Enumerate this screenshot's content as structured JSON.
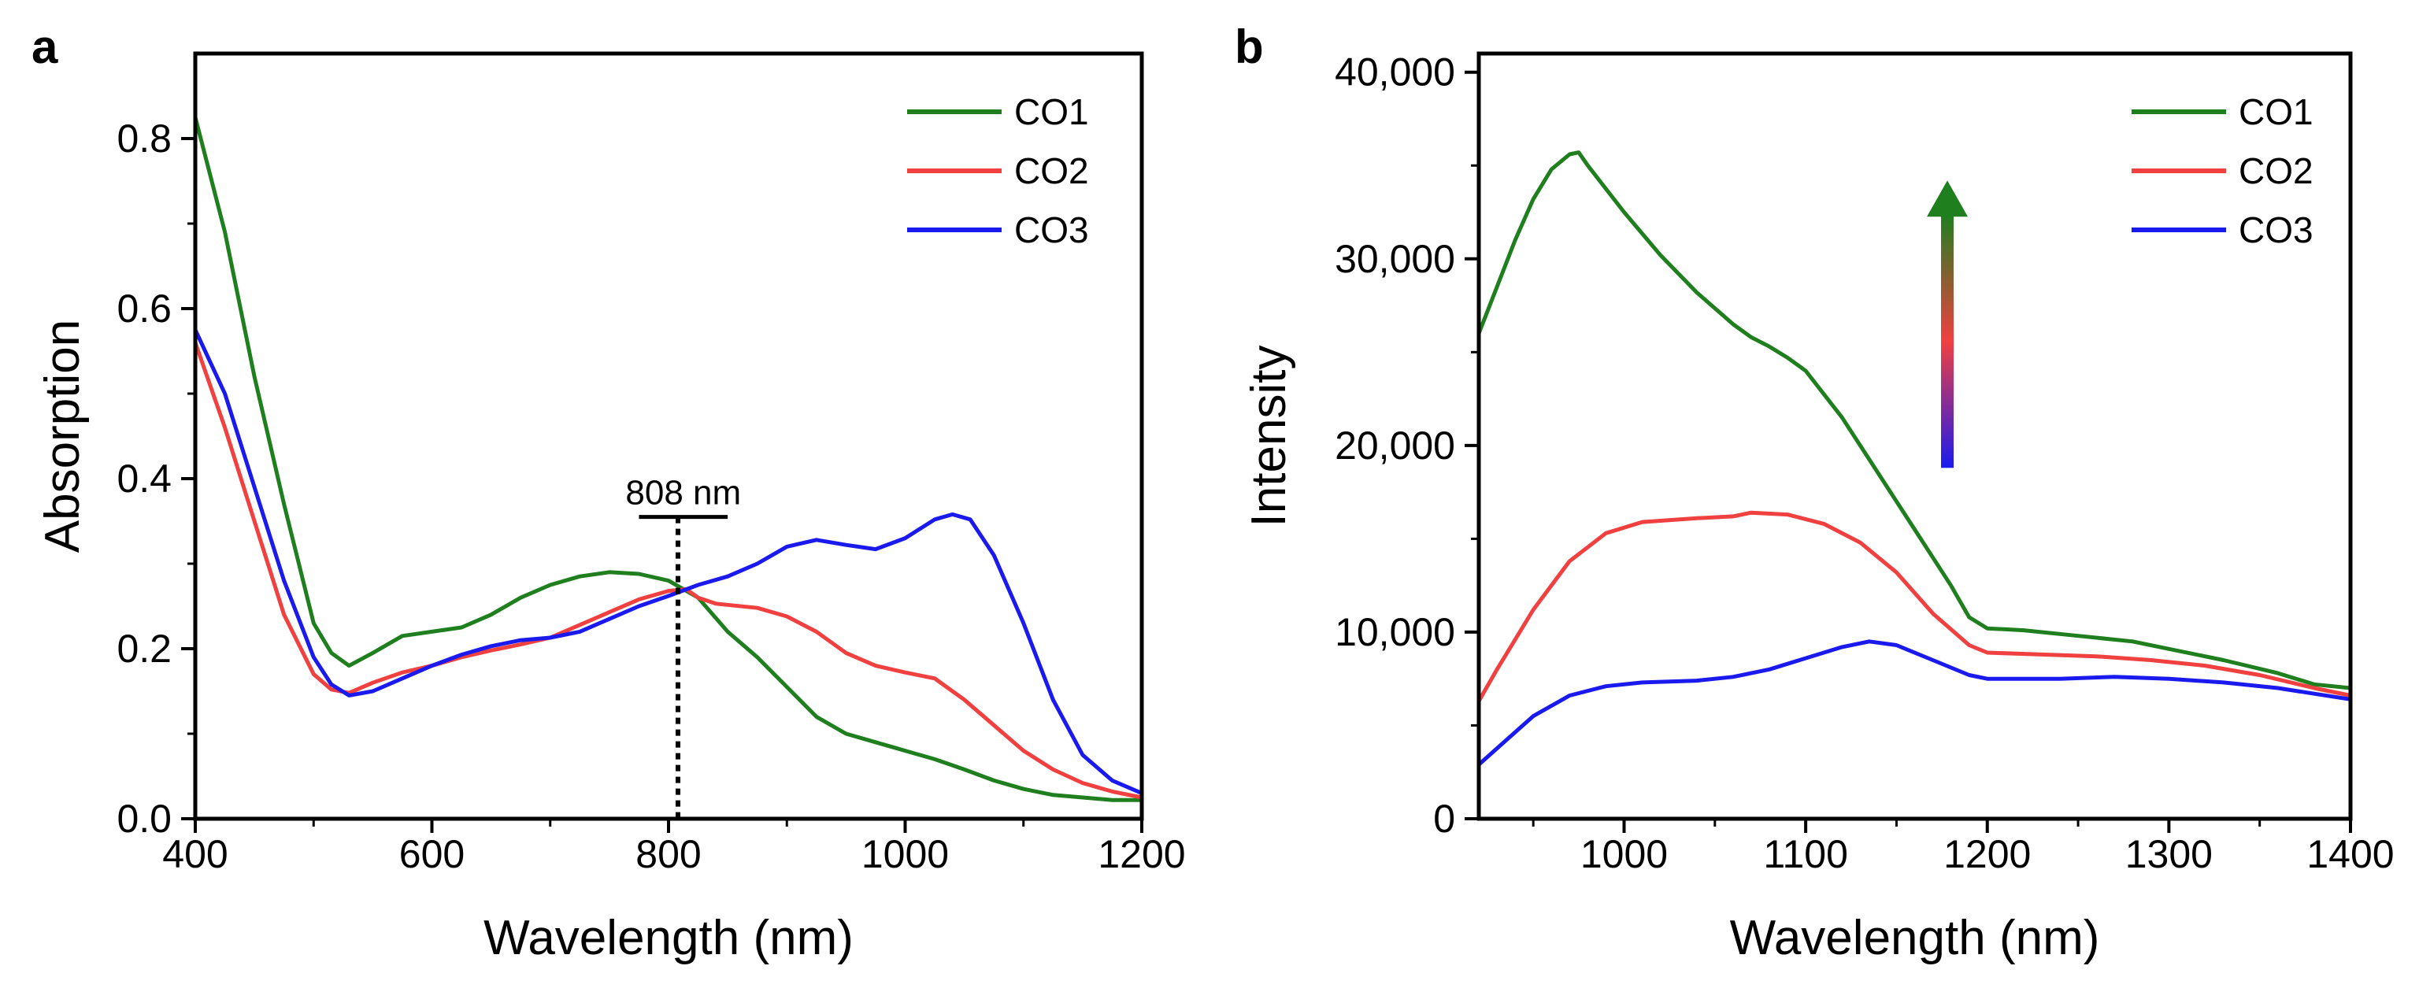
{
  "chart_data": [
    {
      "type": "line",
      "panel": "a",
      "xlabel": "Wavelength (nm)",
      "ylabel": "Absorption",
      "xlim": [
        400,
        1200
      ],
      "ylim": [
        0,
        0.9
      ],
      "xticks": [
        400,
        600,
        800,
        1000,
        1200
      ],
      "xtick_labels": [
        "400",
        "600",
        "800",
        "1000",
        "1200"
      ],
      "yticks": [
        0,
        0.2,
        0.4,
        0.6,
        0.8
      ],
      "ytick_labels": [
        "0.0",
        "0.2",
        "0.4",
        "0.6",
        "0.8"
      ],
      "legend": "top-right",
      "annotation": {
        "label": "808 nm",
        "x": 808,
        "bracket_from": 775,
        "bracket_to": 850,
        "y": 0.355
      },
      "series": [
        {
          "name": "CO1",
          "color": "#1f7f1f",
          "points": [
            [
              400,
              0.825
            ],
            [
              425,
              0.69
            ],
            [
              450,
              0.52
            ],
            [
              475,
              0.37
            ],
            [
              500,
              0.23
            ],
            [
              515,
              0.195
            ],
            [
              530,
              0.18
            ],
            [
              550,
              0.195
            ],
            [
              575,
              0.215
            ],
            [
              600,
              0.22
            ],
            [
              625,
              0.225
            ],
            [
              650,
              0.24
            ],
            [
              675,
              0.26
            ],
            [
              700,
              0.275
            ],
            [
              725,
              0.285
            ],
            [
              750,
              0.29
            ],
            [
              775,
              0.288
            ],
            [
              800,
              0.28
            ],
            [
              825,
              0.26
            ],
            [
              850,
              0.22
            ],
            [
              875,
              0.19
            ],
            [
              900,
              0.155
            ],
            [
              925,
              0.12
            ],
            [
              950,
              0.1
            ],
            [
              975,
              0.09
            ],
            [
              1000,
              0.08
            ],
            [
              1025,
              0.07
            ],
            [
              1050,
              0.058
            ],
            [
              1075,
              0.045
            ],
            [
              1100,
              0.035
            ],
            [
              1125,
              0.028
            ],
            [
              1150,
              0.025
            ],
            [
              1175,
              0.022
            ],
            [
              1200,
              0.022
            ]
          ]
        },
        {
          "name": "CO2",
          "color": "#f04040",
          "points": [
            [
              400,
              0.56
            ],
            [
              425,
              0.46
            ],
            [
              450,
              0.35
            ],
            [
              475,
              0.24
            ],
            [
              500,
              0.17
            ],
            [
              515,
              0.152
            ],
            [
              530,
              0.148
            ],
            [
              550,
              0.16
            ],
            [
              575,
              0.172
            ],
            [
              600,
              0.18
            ],
            [
              625,
              0.19
            ],
            [
              650,
              0.198
            ],
            [
              675,
              0.205
            ],
            [
              700,
              0.213
            ],
            [
              725,
              0.228
            ],
            [
              750,
              0.243
            ],
            [
              775,
              0.258
            ],
            [
              800,
              0.268
            ],
            [
              815,
              0.27
            ],
            [
              825,
              0.26
            ],
            [
              840,
              0.253
            ],
            [
              875,
              0.248
            ],
            [
              900,
              0.238
            ],
            [
              925,
              0.22
            ],
            [
              950,
              0.195
            ],
            [
              975,
              0.18
            ],
            [
              1000,
              0.172
            ],
            [
              1025,
              0.165
            ],
            [
              1050,
              0.14
            ],
            [
              1075,
              0.11
            ],
            [
              1100,
              0.08
            ],
            [
              1125,
              0.058
            ],
            [
              1150,
              0.042
            ],
            [
              1175,
              0.032
            ],
            [
              1200,
              0.025
            ]
          ]
        },
        {
          "name": "CO3",
          "color": "#1a1aef",
          "points": [
            [
              400,
              0.575
            ],
            [
              425,
              0.5
            ],
            [
              450,
              0.39
            ],
            [
              475,
              0.28
            ],
            [
              500,
              0.19
            ],
            [
              515,
              0.158
            ],
            [
              530,
              0.145
            ],
            [
              550,
              0.15
            ],
            [
              575,
              0.165
            ],
            [
              600,
              0.18
            ],
            [
              625,
              0.193
            ],
            [
              650,
              0.203
            ],
            [
              675,
              0.21
            ],
            [
              700,
              0.213
            ],
            [
              725,
              0.22
            ],
            [
              750,
              0.235
            ],
            [
              775,
              0.25
            ],
            [
              800,
              0.262
            ],
            [
              825,
              0.275
            ],
            [
              850,
              0.285
            ],
            [
              875,
              0.3
            ],
            [
              900,
              0.32
            ],
            [
              925,
              0.328
            ],
            [
              950,
              0.322
            ],
            [
              975,
              0.317
            ],
            [
              1000,
              0.33
            ],
            [
              1025,
              0.352
            ],
            [
              1040,
              0.358
            ],
            [
              1055,
              0.352
            ],
            [
              1075,
              0.31
            ],
            [
              1100,
              0.23
            ],
            [
              1125,
              0.14
            ],
            [
              1150,
              0.075
            ],
            [
              1175,
              0.045
            ],
            [
              1200,
              0.03
            ]
          ]
        }
      ]
    },
    {
      "type": "line",
      "panel": "b",
      "xlabel": "Wavelength (nm)",
      "ylabel": "Intensity",
      "xlim": [
        920,
        1400
      ],
      "ylim": [
        0,
        41000
      ],
      "xticks": [
        1000,
        1100,
        1200,
        1300,
        1400
      ],
      "xtick_labels": [
        "1000",
        "1100",
        "1200",
        "1300",
        "1400"
      ],
      "yticks": [
        0,
        10000,
        20000,
        30000,
        40000
      ],
      "ytick_labels": [
        "0",
        "10,000",
        "20,000",
        "30,000",
        "40,000"
      ],
      "legend": "top-right",
      "arrow": {
        "direction": "up",
        "x": 1178,
        "y_from": 18800,
        "y_to": 34200,
        "colors": [
          "#1a1aef",
          "#f04040",
          "#1f7f1f"
        ]
      },
      "series": [
        {
          "name": "CO1",
          "color": "#1f7f1f",
          "points": [
            [
              920,
              26000
            ],
            [
              930,
              28500
            ],
            [
              940,
              31000
            ],
            [
              950,
              33200
            ],
            [
              960,
              34800
            ],
            [
              970,
              35600
            ],
            [
              975,
              35700
            ],
            [
              980,
              35000
            ],
            [
              1000,
              32500
            ],
            [
              1020,
              30200
            ],
            [
              1040,
              28200
            ],
            [
              1060,
              26500
            ],
            [
              1070,
              25800
            ],
            [
              1080,
              25300
            ],
            [
              1090,
              24700
            ],
            [
              1100,
              24000
            ],
            [
              1120,
              21500
            ],
            [
              1140,
              18500
            ],
            [
              1160,
              15500
            ],
            [
              1180,
              12500
            ],
            [
              1190,
              10800
            ],
            [
              1200,
              10200
            ],
            [
              1220,
              10100
            ],
            [
              1250,
              9800
            ],
            [
              1280,
              9500
            ],
            [
              1300,
              9100
            ],
            [
              1330,
              8500
            ],
            [
              1360,
              7800
            ],
            [
              1380,
              7200
            ],
            [
              1400,
              7000
            ]
          ]
        },
        {
          "name": "CO2",
          "color": "#f04040",
          "points": [
            [
              920,
              6300
            ],
            [
              930,
              8000
            ],
            [
              950,
              11200
            ],
            [
              970,
              13800
            ],
            [
              990,
              15300
            ],
            [
              1010,
              15900
            ],
            [
              1040,
              16100
            ],
            [
              1060,
              16200
            ],
            [
              1070,
              16400
            ],
            [
              1090,
              16300
            ],
            [
              1110,
              15800
            ],
            [
              1130,
              14800
            ],
            [
              1150,
              13200
            ],
            [
              1170,
              11000
            ],
            [
              1190,
              9300
            ],
            [
              1200,
              8900
            ],
            [
              1230,
              8800
            ],
            [
              1260,
              8700
            ],
            [
              1290,
              8500
            ],
            [
              1320,
              8200
            ],
            [
              1350,
              7700
            ],
            [
              1380,
              7000
            ],
            [
              1400,
              6600
            ]
          ]
        },
        {
          "name": "CO3",
          "color": "#1a1aef",
          "points": [
            [
              920,
              2900
            ],
            [
              935,
              4200
            ],
            [
              950,
              5500
            ],
            [
              970,
              6600
            ],
            [
              990,
              7100
            ],
            [
              1010,
              7300
            ],
            [
              1040,
              7400
            ],
            [
              1060,
              7600
            ],
            [
              1080,
              8000
            ],
            [
              1100,
              8600
            ],
            [
              1120,
              9200
            ],
            [
              1135,
              9500
            ],
            [
              1150,
              9300
            ],
            [
              1170,
              8500
            ],
            [
              1190,
              7700
            ],
            [
              1200,
              7500
            ],
            [
              1240,
              7500
            ],
            [
              1270,
              7600
            ],
            [
              1300,
              7500
            ],
            [
              1330,
              7300
            ],
            [
              1360,
              7000
            ],
            [
              1380,
              6700
            ],
            [
              1400,
              6400
            ]
          ]
        }
      ]
    }
  ],
  "panels": {
    "a": {
      "letter": "a"
    },
    "b": {
      "letter": "b"
    }
  }
}
